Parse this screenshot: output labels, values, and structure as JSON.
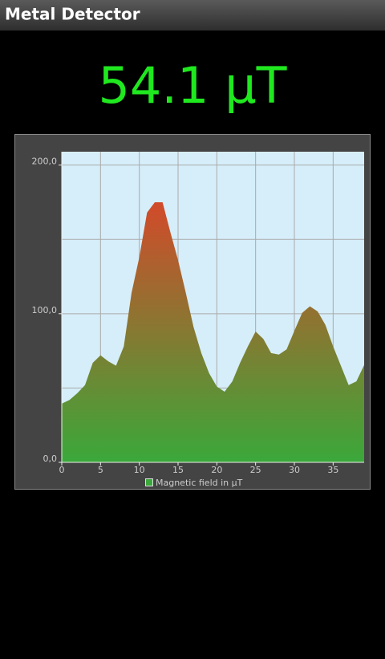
{
  "app_title": "Metal Detector",
  "reading": "54.1 µT",
  "chart_data": {
    "type": "area",
    "x": [
      0,
      1,
      2,
      3,
      4,
      5,
      6,
      7,
      8,
      9,
      10,
      11,
      12,
      13,
      14,
      15,
      16,
      17,
      18,
      19,
      20,
      21,
      22,
      23,
      24,
      25,
      26,
      27,
      28,
      29,
      30,
      31,
      32,
      33,
      34,
      35,
      36,
      37,
      38,
      39
    ],
    "series": [
      {
        "name": "Magnetic field in µT",
        "color": "#3aa83a",
        "values": [
          39.5,
          42,
          46.5,
          52,
          67,
          72,
          68,
          65,
          78,
          114,
          138,
          168,
          175,
          175,
          155,
          136,
          114,
          91,
          73.5,
          60,
          51,
          47.5,
          54.5,
          67,
          78,
          88,
          83,
          73.5,
          72.5,
          76,
          88.5,
          100.5,
          105,
          101.5,
          92.5,
          78,
          65,
          52,
          54.5,
          65.5
        ]
      }
    ],
    "peak_color": "#d24a2a",
    "xlim": [
      0,
      39
    ],
    "ylim": [
      0,
      209
    ],
    "xticks": [
      0,
      5,
      10,
      15,
      20,
      25,
      30,
      35
    ],
    "yticks": [
      {
        "value": 0,
        "label": "0,0"
      },
      {
        "value": 100,
        "label": "100,0"
      },
      {
        "value": 200,
        "label": "200,0"
      }
    ],
    "minor_yticks": [
      50,
      150
    ],
    "grid": true,
    "legend": "bottom"
  }
}
